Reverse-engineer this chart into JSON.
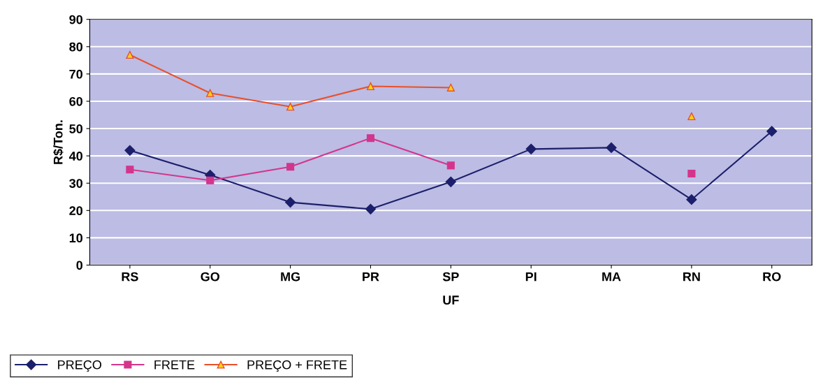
{
  "chart_data": {
    "type": "line",
    "xlabel": "UF",
    "ylabel": "R$/Ton.",
    "categories": [
      "RS",
      "GO",
      "MG",
      "PR",
      "SP",
      "PI",
      "MA",
      "RN",
      "RO"
    ],
    "series": [
      {
        "name": "PREÇO",
        "color": "#1c1f6b",
        "marker": "diamond",
        "values": [
          42,
          33,
          23,
          20.5,
          30.5,
          42.5,
          43,
          24,
          49
        ]
      },
      {
        "name": "FRETE",
        "color": "#d4358c",
        "marker": "square",
        "values": [
          35,
          31,
          36,
          46.5,
          36.5,
          null,
          null,
          33.5,
          null
        ]
      },
      {
        "name": "PREÇO + FRETE",
        "color": "#e8502a",
        "marker": "triangle",
        "values": [
          77,
          63,
          58,
          65.5,
          65,
          null,
          null,
          54.5,
          null
        ]
      }
    ],
    "ylim": [
      0,
      90
    ],
    "yticks": [
      0,
      10,
      20,
      30,
      40,
      50,
      60,
      70,
      80,
      90
    ],
    "grid": "y",
    "legend": "bottom left",
    "line_style": "solid"
  }
}
